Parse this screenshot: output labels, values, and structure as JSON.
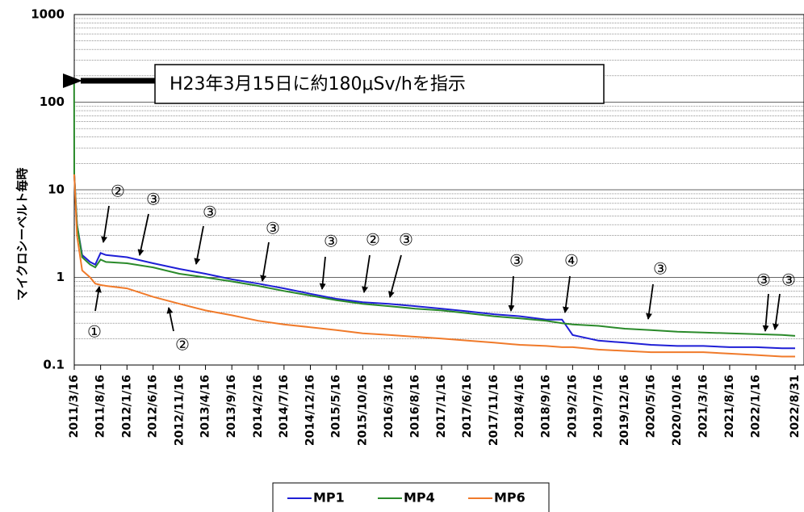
{
  "chart_data": {
    "type": "line",
    "y_label": "マイクロシーベルト毎時",
    "log_scale": true,
    "grid": true,
    "legend": "bottom",
    "ylim": [
      0.1,
      1000
    ],
    "yticks": [
      1000,
      100,
      10,
      1,
      0.1
    ],
    "xlim": [
      "2011/3/16",
      "2022/8/31"
    ],
    "xticks": [
      "2011/3/16",
      "2011/8/16",
      "2012/1/16",
      "2012/6/16",
      "2012/11/16",
      "2013/4/16",
      "2013/9/16",
      "2014/2/16",
      "2014/7/16",
      "2014/12/16",
      "2015/5/16",
      "2015/10/16",
      "2016/3/16",
      "2016/8/16",
      "2017/1/16",
      "2017/6/16",
      "2017/11/16",
      "2018/4/16",
      "2018/9/16",
      "2019/2/16",
      "2019/7/16",
      "2019/12/16",
      "2020/5/16",
      "2020/10/16",
      "2021/3/16",
      "2021/8/16",
      "2022/1/16",
      "2022/8/31"
    ],
    "x": [
      "2011/3/15",
      "2011/3/16",
      "2011/4/1",
      "2011/5/1",
      "2011/6/16",
      "2011/7/16",
      "2011/8/16",
      "2011/9/16",
      "2012/1/16",
      "2012/6/16",
      "2012/11/16",
      "2013/4/16",
      "2013/9/16",
      "2014/2/16",
      "2014/7/16",
      "2014/12/16",
      "2015/5/16",
      "2015/10/16",
      "2016/3/16",
      "2016/8/16",
      "2017/1/16",
      "2017/6/16",
      "2017/11/16",
      "2018/4/16",
      "2018/9/16",
      "2018/12/16",
      "2019/2/16",
      "2019/7/16",
      "2019/12/16",
      "2020/5/16",
      "2020/10/16",
      "2021/3/16",
      "2021/8/16",
      "2022/1/16",
      "2022/6/16",
      "2022/8/31"
    ],
    "series": [
      {
        "name": "MP1",
        "color": "#1f1fd6",
        "values": [
          null,
          15,
          4,
          1.8,
          1.5,
          1.4,
          1.9,
          1.8,
          1.7,
          1.45,
          1.25,
          1.1,
          0.95,
          0.85,
          0.75,
          0.65,
          0.57,
          0.52,
          0.5,
          0.47,
          0.44,
          0.41,
          0.38,
          0.36,
          0.33,
          0.33,
          0.22,
          0.19,
          0.18,
          0.17,
          0.165,
          0.165,
          0.16,
          0.16,
          0.155,
          0.155
        ]
      },
      {
        "name": "MP4",
        "color": "#2a8a2a",
        "values": [
          180,
          15,
          4,
          1.7,
          1.4,
          1.3,
          1.6,
          1.5,
          1.45,
          1.3,
          1.1,
          1.0,
          0.9,
          0.8,
          0.7,
          0.62,
          0.55,
          0.5,
          0.47,
          0.44,
          0.42,
          0.39,
          0.36,
          0.34,
          0.32,
          0.3,
          0.29,
          0.28,
          0.26,
          0.25,
          0.24,
          0.235,
          0.23,
          0.225,
          0.22,
          0.215
        ]
      },
      {
        "name": "MP6",
        "color": "#f07a2a",
        "values": [
          null,
          15,
          3,
          1.2,
          1.0,
          0.85,
          0.82,
          0.8,
          0.75,
          0.6,
          0.5,
          0.42,
          0.37,
          0.32,
          0.29,
          0.27,
          0.25,
          0.23,
          0.22,
          0.21,
          0.2,
          0.19,
          0.18,
          0.17,
          0.165,
          0.16,
          0.16,
          0.15,
          0.145,
          0.14,
          0.14,
          0.14,
          0.135,
          0.13,
          0.125,
          0.125
        ]
      }
    ],
    "callout": "H23年3月15日に約180μSv/hを指示",
    "annotations": [
      "①",
      "②",
      "③",
      "③",
      "③",
      "③",
      "②",
      "③",
      "③",
      "④",
      "③",
      "③",
      "③",
      "②"
    ]
  }
}
